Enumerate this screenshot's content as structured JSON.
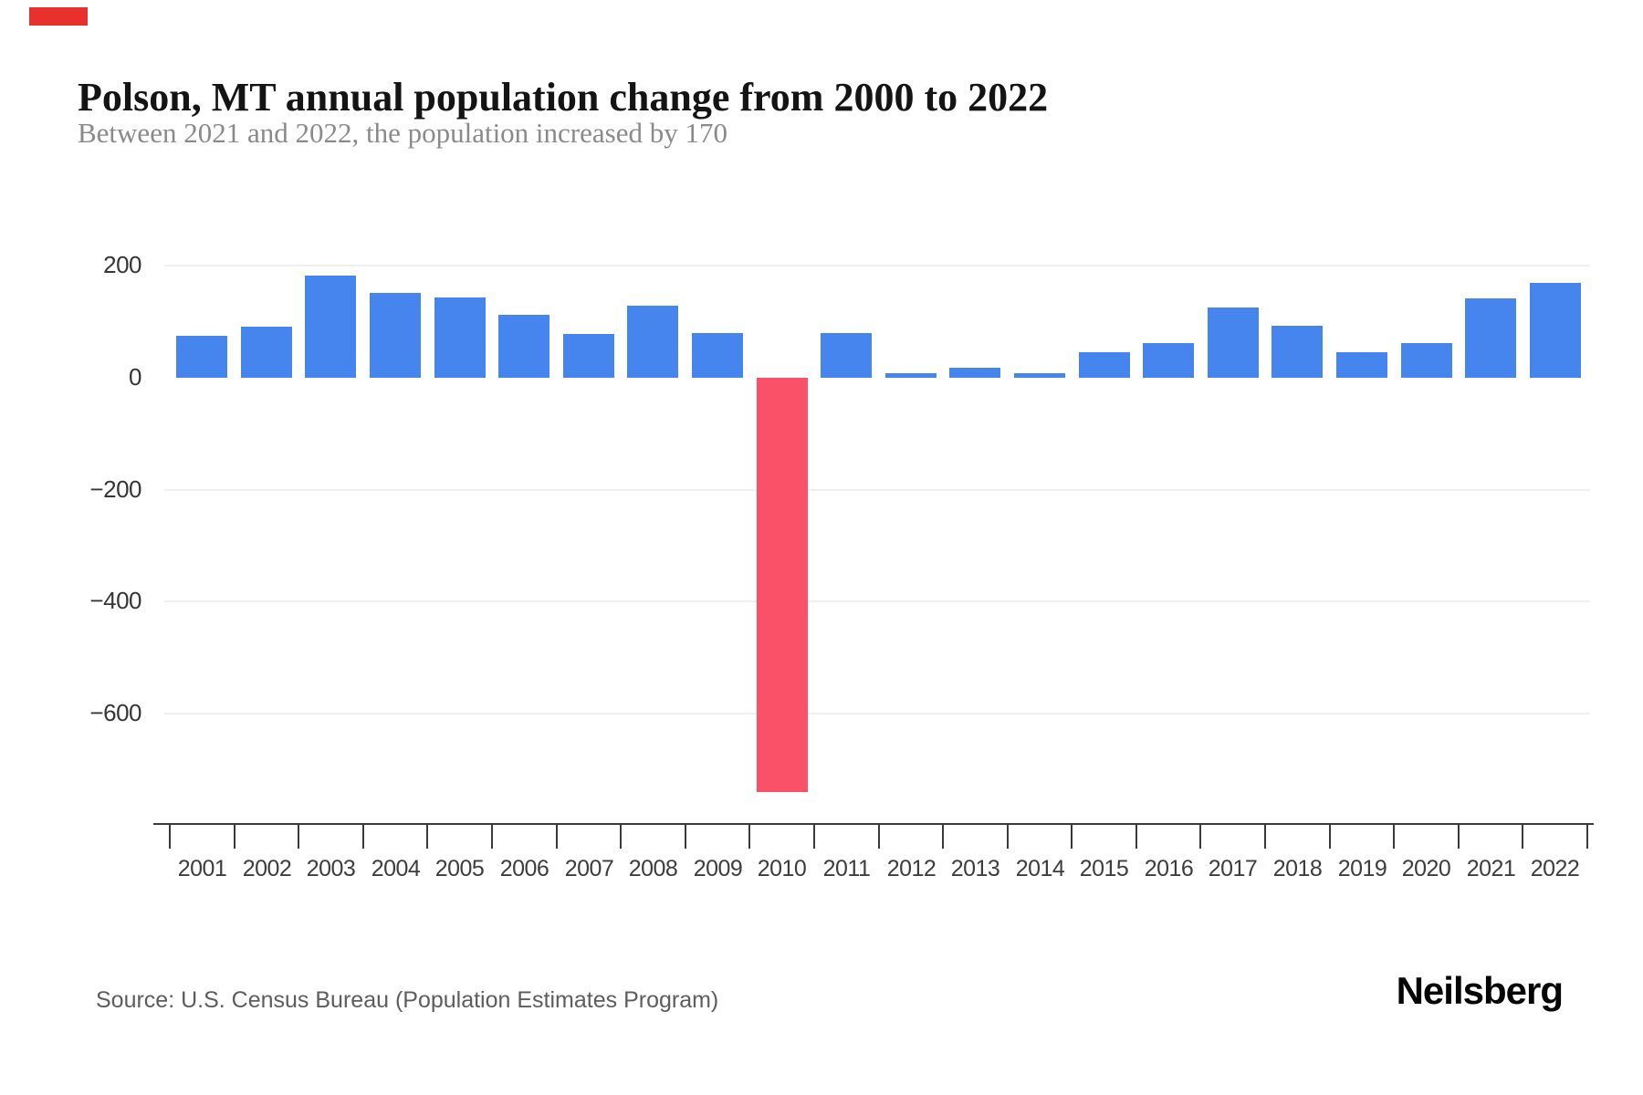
{
  "header": {
    "title": "Polson, MT annual population change from 2000 to 2022",
    "subtitle": "Between 2021 and 2022, the population increased by 170"
  },
  "chart_data": {
    "type": "bar",
    "title": "Polson, MT annual population change from 2000 to 2022",
    "subtitle": "Between 2021 and 2022, the population increased by 170",
    "categories": [
      "2001",
      "2002",
      "2003",
      "2004",
      "2005",
      "2006",
      "2007",
      "2008",
      "2009",
      "2010",
      "2011",
      "2012",
      "2013",
      "2014",
      "2015",
      "2016",
      "2017",
      "2018",
      "2019",
      "2020",
      "2021",
      "2022"
    ],
    "values": [
      75,
      92,
      183,
      152,
      143,
      112,
      78,
      128,
      80,
      -740,
      80,
      8,
      18,
      8,
      46,
      62,
      125,
      93,
      46,
      62,
      142,
      170
    ],
    "xlabel": "",
    "ylabel": "",
    "yticks": [
      200,
      0,
      -200,
      -400,
      -600
    ],
    "ytick_labels": [
      "200",
      "0",
      "−200",
      "−400",
      "−600"
    ],
    "ylim": [
      -800,
      230
    ],
    "grid": "horizontal",
    "legend": "none"
  },
  "colors": {
    "bar_positive": "#4685ee",
    "bar_negative": "#fa5168",
    "gridline": "#f0f0f0",
    "axis": "#3a3a3a",
    "title_text": "#141414",
    "subtitle_text": "#8a8a8a",
    "source_text": "#5d5d5d",
    "top_left_marker": "#e8312d"
  },
  "footer": {
    "source": "Source: U.S. Census Bureau (Population Estimates Program)",
    "brand": "Neilsberg"
  }
}
